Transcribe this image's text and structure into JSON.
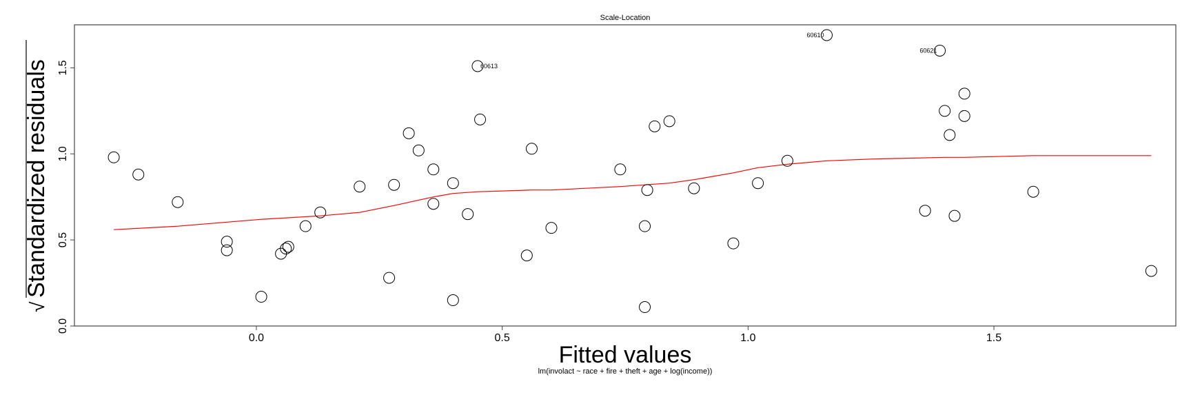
{
  "chart_data": {
    "type": "scatter",
    "title": "Scale-Location",
    "xlabel": "Fitted values",
    "ylabel": "Standardized residuals",
    "ylabel_prefix": "√",
    "subtitle": "lm(involact ~ race + fire + theft + age + log(income))",
    "xlim": [
      -0.37,
      1.87
    ],
    "ylim": [
      0.0,
      1.75
    ],
    "xticks": [
      {
        "value": 0.0,
        "label": "0.0"
      },
      {
        "value": 0.5,
        "label": "0.5"
      },
      {
        "value": 1.0,
        "label": "1.0"
      },
      {
        "value": 1.5,
        "label": "1.5"
      }
    ],
    "yticks": [
      {
        "value": 0.0,
        "label": "0.0"
      },
      {
        "value": 0.5,
        "label": "0.5"
      },
      {
        "value": 1.0,
        "label": "1.0"
      },
      {
        "value": 1.5,
        "label": "1.5"
      }
    ],
    "grid": false,
    "points": [
      {
        "x": -0.29,
        "y": 0.98
      },
      {
        "x": -0.24,
        "y": 0.88
      },
      {
        "x": -0.16,
        "y": 0.72
      },
      {
        "x": -0.06,
        "y": 0.49
      },
      {
        "x": -0.06,
        "y": 0.44
      },
      {
        "x": 0.01,
        "y": 0.17
      },
      {
        "x": 0.05,
        "y": 0.42
      },
      {
        "x": 0.06,
        "y": 0.45
      },
      {
        "x": 0.065,
        "y": 0.46
      },
      {
        "x": 0.1,
        "y": 0.58
      },
      {
        "x": 0.13,
        "y": 0.66
      },
      {
        "x": 0.21,
        "y": 0.81
      },
      {
        "x": 0.27,
        "y": 0.28
      },
      {
        "x": 0.28,
        "y": 0.82
      },
      {
        "x": 0.31,
        "y": 1.12
      },
      {
        "x": 0.33,
        "y": 1.02
      },
      {
        "x": 0.36,
        "y": 0.91
      },
      {
        "x": 0.36,
        "y": 0.71
      },
      {
        "x": 0.4,
        "y": 0.83
      },
      {
        "x": 0.4,
        "y": 0.15
      },
      {
        "x": 0.43,
        "y": 0.65
      },
      {
        "x": 0.45,
        "y": 1.51,
        "label": "60613"
      },
      {
        "x": 0.455,
        "y": 1.2
      },
      {
        "x": 0.55,
        "y": 0.41
      },
      {
        "x": 0.56,
        "y": 1.03
      },
      {
        "x": 0.6,
        "y": 0.57
      },
      {
        "x": 0.74,
        "y": 0.91
      },
      {
        "x": 0.79,
        "y": 0.58
      },
      {
        "x": 0.79,
        "y": 0.11
      },
      {
        "x": 0.795,
        "y": 0.79
      },
      {
        "x": 0.81,
        "y": 1.16
      },
      {
        "x": 0.84,
        "y": 1.19
      },
      {
        "x": 0.89,
        "y": 0.8
      },
      {
        "x": 0.97,
        "y": 0.48
      },
      {
        "x": 1.02,
        "y": 0.83
      },
      {
        "x": 1.08,
        "y": 0.96
      },
      {
        "x": 1.16,
        "y": 1.69,
        "label": "60610"
      },
      {
        "x": 1.36,
        "y": 0.67
      },
      {
        "x": 1.39,
        "y": 1.6,
        "label": "60621"
      },
      {
        "x": 1.4,
        "y": 1.25
      },
      {
        "x": 1.41,
        "y": 1.11
      },
      {
        "x": 1.42,
        "y": 0.64
      },
      {
        "x": 1.44,
        "y": 1.35
      },
      {
        "x": 1.44,
        "y": 1.22
      },
      {
        "x": 1.58,
        "y": 0.78
      },
      {
        "x": 1.82,
        "y": 0.32
      }
    ],
    "smooth_line": {
      "color": "#ff0000",
      "x": [
        -0.29,
        -0.16,
        0.01,
        0.13,
        0.21,
        0.28,
        0.36,
        0.4,
        0.45,
        0.56,
        0.6,
        0.74,
        0.79,
        0.84,
        0.89,
        0.97,
        1.02,
        1.08,
        1.16,
        1.25,
        1.4,
        1.44,
        1.58,
        1.82
      ],
      "y": [
        0.56,
        0.58,
        0.62,
        0.64,
        0.66,
        0.7,
        0.75,
        0.77,
        0.78,
        0.79,
        0.79,
        0.81,
        0.82,
        0.83,
        0.85,
        0.89,
        0.92,
        0.94,
        0.96,
        0.97,
        0.98,
        0.98,
        0.99,
        0.99
      ]
    }
  }
}
